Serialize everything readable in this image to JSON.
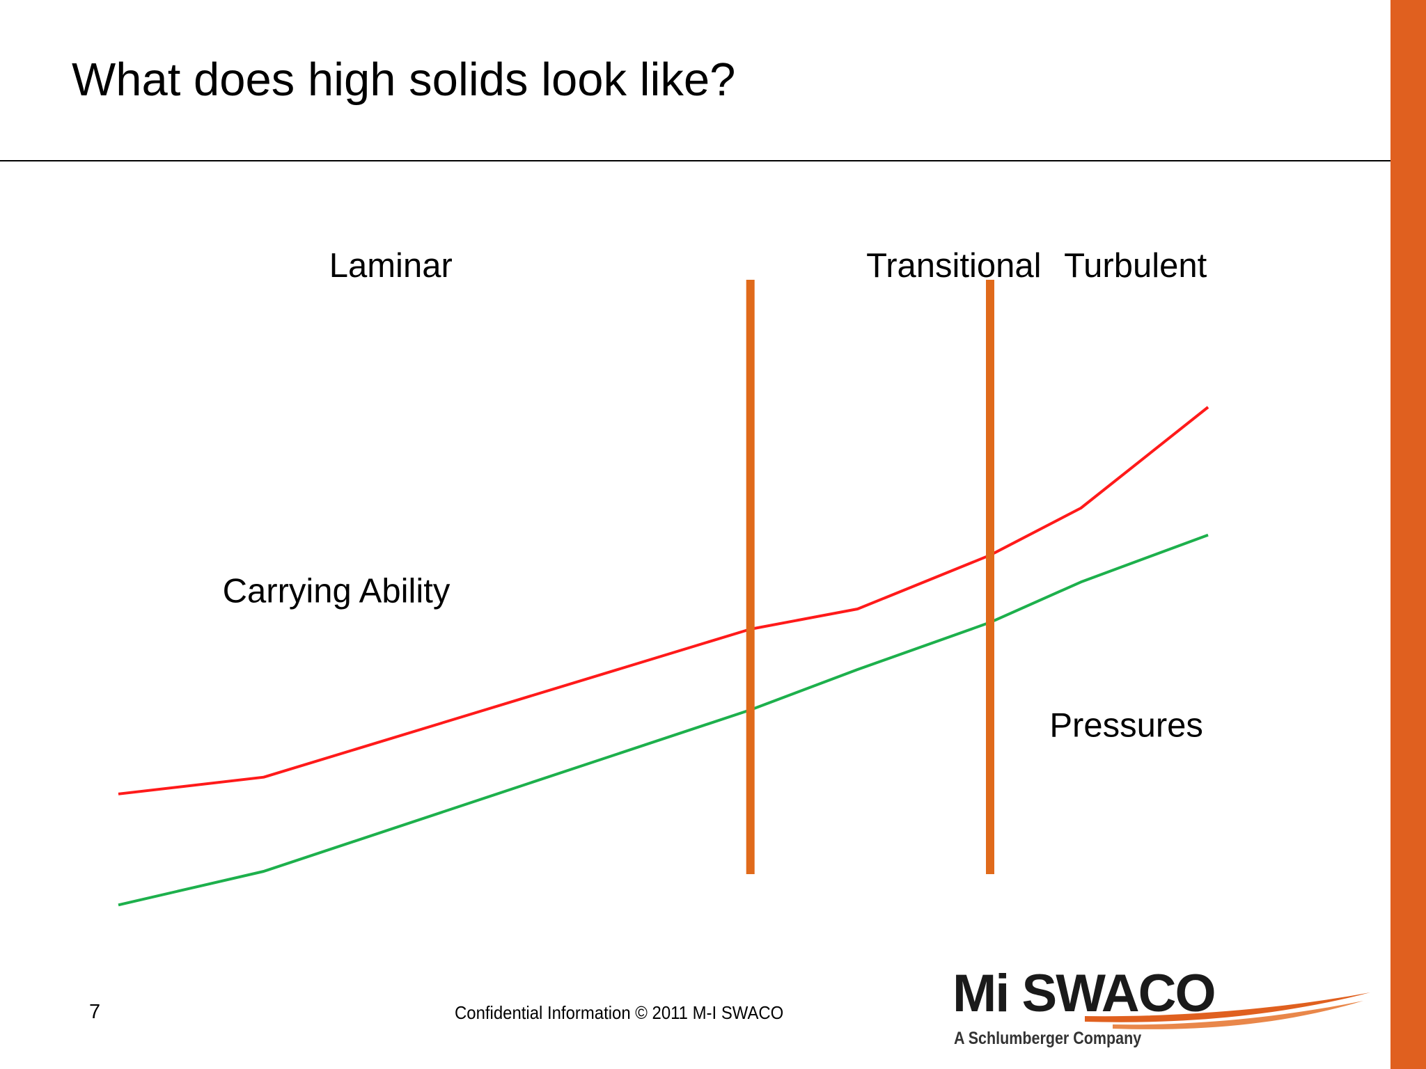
{
  "slide": {
    "title": "What does high solids look like?",
    "page_number": "7",
    "footer": "Confidential Information  © 2011 M-I SWACO"
  },
  "brand": {
    "logo_name": "Mi SWACO",
    "logo_tagline": "A Schlumberger Company"
  },
  "colors": {
    "accent": "#E0601F",
    "boundary": "#E06A1B",
    "red_line": "#FF1A1A",
    "green_line": "#1DB04C",
    "rule": "#000000"
  },
  "chart_data": {
    "type": "line",
    "title": "",
    "xlabel": "",
    "ylabel": "",
    "xlim": [
      0,
      6
    ],
    "ylim": [
      0,
      9
    ],
    "grid": false,
    "legend": "none",
    "regions": [
      {
        "label": "Laminar",
        "x": 1.5
      },
      {
        "label": "Transitional",
        "x": 4.6
      },
      {
        "label": "Turbulent",
        "x": 5.6
      }
    ],
    "boundaries": [
      3.48,
      4.8
    ],
    "series": [
      {
        "name": "Carrying Ability",
        "color": "#FF1A1A",
        "x": [
          0,
          0.8,
          3.48,
          4.07,
          4.8,
          5.3,
          6
        ],
        "y": [
          1.75,
          2.0,
          4.2,
          4.5,
          5.3,
          6.0,
          7.5
        ]
      },
      {
        "name": "Pressures",
        "color": "#1DB04C",
        "x": [
          0,
          0.8,
          3.48,
          4.07,
          4.8,
          5.3,
          6
        ],
        "y": [
          0.1,
          0.6,
          3.0,
          3.6,
          4.3,
          4.9,
          5.6
        ]
      }
    ],
    "annotations": [
      {
        "text": "Carrying Ability",
        "x": 1.2,
        "y": 4.6
      },
      {
        "text": "Pressures",
        "x": 5.55,
        "y": 2.6
      }
    ]
  }
}
